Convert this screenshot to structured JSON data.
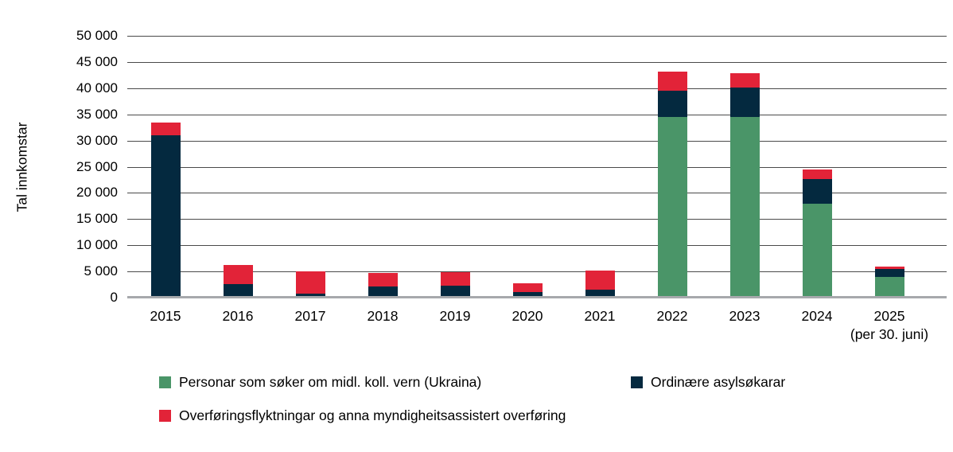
{
  "chart_data": {
    "type": "bar",
    "stacked": true,
    "title": "",
    "ylabel": "Tal innkomstar",
    "xlabel": "",
    "ylim": [
      0,
      50000
    ],
    "ytick_step": 5000,
    "grid": true,
    "legend_position": "bottom",
    "ytick_labels": [
      "50 000",
      "45 000",
      "40 000",
      "35 000",
      "30 000",
      "25 000",
      "20 000",
      "15 000",
      "10 000",
      "5 000",
      "0"
    ],
    "categories": [
      {
        "label": "2015",
        "sublabel": ""
      },
      {
        "label": "2016",
        "sublabel": ""
      },
      {
        "label": "2017",
        "sublabel": ""
      },
      {
        "label": "2018",
        "sublabel": ""
      },
      {
        "label": "2019",
        "sublabel": ""
      },
      {
        "label": "2020",
        "sublabel": ""
      },
      {
        "label": "2021",
        "sublabel": ""
      },
      {
        "label": "2022",
        "sublabel": ""
      },
      {
        "label": "2023",
        "sublabel": ""
      },
      {
        "label": "2024",
        "sublabel": ""
      },
      {
        "label": "2025",
        "sublabel": "(per 30. juni)"
      }
    ],
    "series": [
      {
        "key": "midl-koll-vern-ukraina",
        "name": "Personar som søker om midl. koll. vern (Ukraina)",
        "color": "#4a9568",
        "values": [
          0,
          0,
          0,
          0,
          0,
          0,
          0,
          34500,
          34500,
          18000,
          3900
        ]
      },
      {
        "key": "ordinaere-asylsokarar",
        "name": "Ordinære asylsøkarar",
        "color": "#04293f",
        "values": [
          31000,
          2600,
          700,
          2200,
          2300,
          1100,
          1500,
          5000,
          5600,
          4700,
          1600
        ]
      },
      {
        "key": "overforingsflyktningar",
        "name": "Overføringsflyktningar og anna myndigheitsassistert overføring",
        "color": "#e22338",
        "values": [
          2500,
          3700,
          4300,
          2500,
          2500,
          1700,
          3600,
          3700,
          2700,
          1800,
          500
        ]
      }
    ]
  }
}
